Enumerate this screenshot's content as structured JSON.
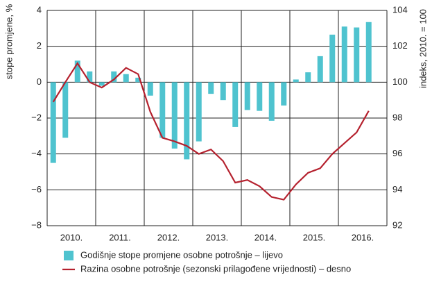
{
  "chart_data": {
    "type": "bar_line",
    "groups": [
      "2010.",
      "2011.",
      "2012.",
      "2013.",
      "2014.",
      "2015.",
      "2016."
    ],
    "categories": [
      null,
      null,
      null,
      null,
      null,
      null,
      null,
      null,
      null,
      null,
      null,
      null,
      null,
      null,
      null,
      null,
      null,
      null,
      null,
      null,
      null,
      null,
      null,
      null,
      null,
      null,
      null,
      null
    ],
    "ylabel": "stope promjene, %",
    "y2label": "indeks, 2010. = 100",
    "ylim": [
      -8,
      4
    ],
    "yticks": [
      {
        "value": -8,
        "label": "−8"
      },
      {
        "value": -6,
        "label": "−6"
      },
      {
        "value": -4,
        "label": "−4"
      },
      {
        "value": -2,
        "label": "−2"
      },
      0,
      2,
      4
    ],
    "y2lim": [
      92,
      104
    ],
    "y2ticks": [
      92,
      94,
      96,
      98,
      100,
      102,
      104
    ],
    "grid": true,
    "series": [
      {
        "name": "Godišnje stope promjene osobne potrošnje – lijevo",
        "type": "bar",
        "color": "#4fc3cf",
        "values": [
          -4.5,
          -3.1,
          1.2,
          0.6,
          -0.2,
          0.6,
          0.45,
          0.25,
          -0.75,
          -3.1,
          -3.7,
          -4.3,
          -3.3,
          -0.65,
          -1.0,
          -2.5,
          -1.55,
          -1.6,
          -2.15,
          -1.3,
          0.15,
          0.55,
          1.45,
          2.65,
          3.1,
          3.05,
          3.35,
          null
        ]
      },
      {
        "name": "Razina osobne potrošnje (sezonski prilagođene vrijednosti) – desno",
        "type": "line",
        "axis": "y2",
        "color": "#b5212e",
        "values": [
          98.9,
          100.0,
          101.05,
          100.0,
          99.7,
          100.15,
          100.8,
          100.45,
          98.35,
          96.9,
          96.7,
          96.45,
          96.0,
          96.25,
          95.6,
          94.4,
          94.55,
          94.2,
          93.6,
          93.45,
          94.3,
          94.95,
          95.2,
          96.0,
          96.6,
          97.2,
          98.4,
          null
        ]
      }
    ]
  }
}
